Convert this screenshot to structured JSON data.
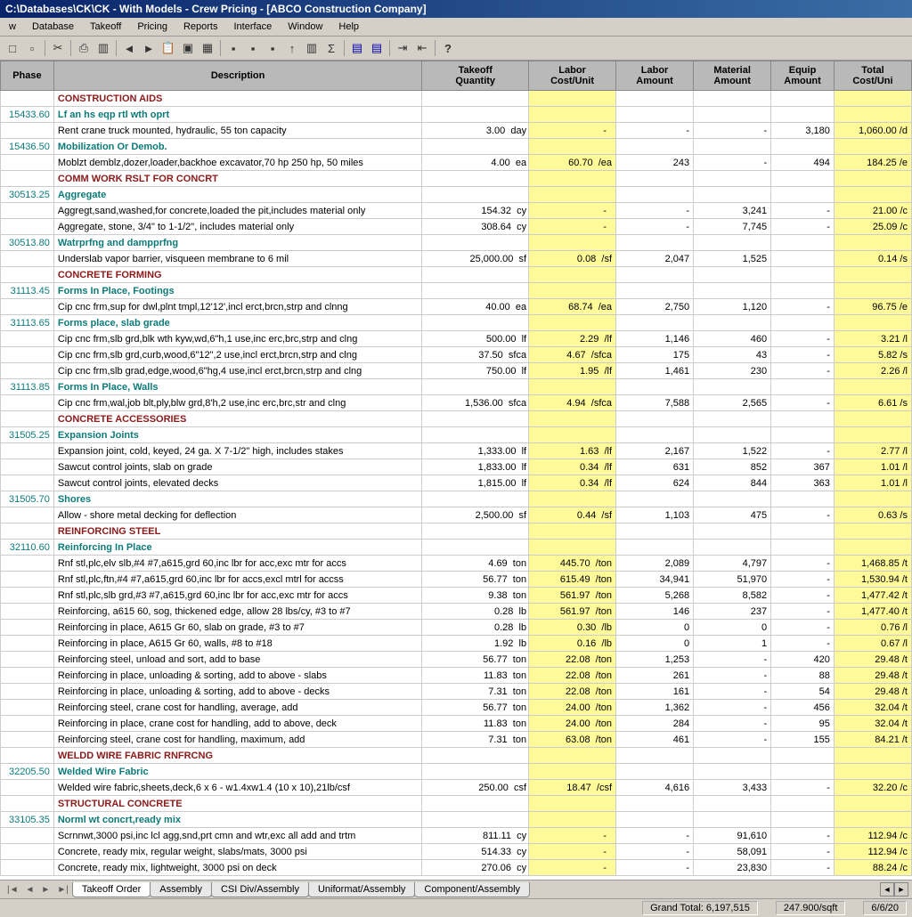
{
  "title": "C:\\Databases\\CK\\CK - With Models - Crew Pricing - [ABCO Construction Company]",
  "menu": [
    "w",
    "Database",
    "Takeoff",
    "Pricing",
    "Reports",
    "Interface",
    "Window",
    "Help"
  ],
  "cols": [
    "Phase",
    "Description",
    "Takeoff\nQuantity",
    "Labor\nCost/Unit",
    "Labor\nAmount",
    "Material\nAmount",
    "Equip\nAmount",
    "Total\nCost/Uni"
  ],
  "rows": [
    {
      "t": "sec",
      "d": "CONSTRUCTION AIDS"
    },
    {
      "t": "sub",
      "p": "15433.60",
      "d": "Lf an hs eqp rtl wth oprt"
    },
    {
      "t": "r",
      "d": "Rent crane truck mounted, hydraulic, 55 ton capacity",
      "q": "3.00",
      "u": "day",
      "c": "-",
      "la": "-",
      "ma": "-",
      "ea": "3,180",
      "tc": "1,060.00",
      "tu": "/d"
    },
    {
      "t": "sub",
      "p": "15436.50",
      "d": "Mobilization Or Demob."
    },
    {
      "t": "r",
      "d": "Moblzt demblz,dozer,loader,backhoe excavator,70 hp 250 hp, 50 miles",
      "q": "4.00",
      "u": "ea",
      "c": "60.70",
      "cu": "/ea",
      "la": "243",
      "ma": "-",
      "ea": "494",
      "tc": "184.25",
      "tu": "/e"
    },
    {
      "t": "sec",
      "d": "COMM WORK RSLT FOR CONCRT"
    },
    {
      "t": "sub",
      "p": "30513.25",
      "d": "Aggregate"
    },
    {
      "t": "r",
      "d": "Aggregt,sand,washed,for concrete,loaded the pit,includes material only",
      "q": "154.32",
      "u": "cy",
      "c": "-",
      "la": "-",
      "ma": "3,241",
      "ea": "-",
      "tc": "21.00",
      "tu": "/c"
    },
    {
      "t": "r",
      "d": "Aggregate, stone, 3/4\" to 1-1/2\", includes material only",
      "q": "308.64",
      "u": "cy",
      "c": "-",
      "la": "-",
      "ma": "7,745",
      "ea": "-",
      "tc": "25.09",
      "tu": "/c"
    },
    {
      "t": "sub",
      "p": "30513.80",
      "d": "Watrprfng and dampprfng"
    },
    {
      "t": "r",
      "d": "Underslab vapor barrier, visqueen membrane to 6 mil",
      "q": "25,000.00",
      "u": "sf",
      "c": "0.08",
      "cu": "/sf",
      "la": "2,047",
      "ma": "1,525",
      "ea": "",
      "tc": "0.14",
      "tu": "/s"
    },
    {
      "t": "sec",
      "d": "CONCRETE FORMING"
    },
    {
      "t": "sub",
      "p": "31113.45",
      "d": "Forms In Place, Footings"
    },
    {
      "t": "r",
      "d": "Cip cnc frm,sup for dwl,plnt tmpl,12'12',incl erct,brcn,strp and clnng",
      "q": "40.00",
      "u": "ea",
      "c": "68.74",
      "cu": "/ea",
      "la": "2,750",
      "ma": "1,120",
      "ea": "-",
      "tc": "96.75",
      "tu": "/e"
    },
    {
      "t": "sub",
      "p": "31113.65",
      "d": "Forms place, slab grade"
    },
    {
      "t": "r",
      "d": "Cip cnc frm,slb grd,blk wth kyw,wd,6\"h,1 use,inc erc,brc,strp and clng",
      "q": "500.00",
      "u": "lf",
      "c": "2.29",
      "cu": "/lf",
      "la": "1,146",
      "ma": "460",
      "ea": "-",
      "tc": "3.21",
      "tu": "/l"
    },
    {
      "t": "r",
      "d": "Cip cnc frm,slb grd,curb,wood,6\"12\",2 use,incl erct,brcn,strp and clng",
      "q": "37.50",
      "u": "sfca",
      "c": "4.67",
      "cu": "/sfca",
      "la": "175",
      "ma": "43",
      "ea": "-",
      "tc": "5.82",
      "tu": "/s"
    },
    {
      "t": "r",
      "d": "Cip cnc frm,slb grad,edge,wood,6\"hg,4 use,incl erct,brcn,strp and clng",
      "q": "750.00",
      "u": "lf",
      "c": "1.95",
      "cu": "/lf",
      "la": "1,461",
      "ma": "230",
      "ea": "-",
      "tc": "2.26",
      "tu": "/l"
    },
    {
      "t": "sub",
      "p": "31113.85",
      "d": "Forms In Place, Walls"
    },
    {
      "t": "r",
      "d": "Cip cnc frm,wal,job blt,ply,blw grd,8'h,2 use,inc erc,brc,str and clng",
      "q": "1,536.00",
      "u": "sfca",
      "c": "4.94",
      "cu": "/sfca",
      "la": "7,588",
      "ma": "2,565",
      "ea": "-",
      "tc": "6.61",
      "tu": "/s"
    },
    {
      "t": "sec",
      "d": "CONCRETE ACCESSORIES"
    },
    {
      "t": "sub",
      "p": "31505.25",
      "d": "Expansion Joints"
    },
    {
      "t": "r",
      "d": "Expansion joint, cold, keyed, 24 ga. X 7-1/2\" high, includes stakes",
      "q": "1,333.00",
      "u": "lf",
      "c": "1.63",
      "cu": "/lf",
      "la": "2,167",
      "ma": "1,522",
      "ea": "-",
      "tc": "2.77",
      "tu": "/l"
    },
    {
      "t": "r",
      "d": "Sawcut control joints, slab on grade",
      "q": "1,833.00",
      "u": "lf",
      "c": "0.34",
      "cu": "/lf",
      "la": "631",
      "ma": "852",
      "ea": "367",
      "tc": "1.01",
      "tu": "/l"
    },
    {
      "t": "r",
      "d": "Sawcut control joints, elevated decks",
      "q": "1,815.00",
      "u": "lf",
      "c": "0.34",
      "cu": "/lf",
      "la": "624",
      "ma": "844",
      "ea": "363",
      "tc": "1.01",
      "tu": "/l"
    },
    {
      "t": "sub",
      "p": "31505.70",
      "d": "Shores"
    },
    {
      "t": "r",
      "d": "Allow - shore metal decking for deflection",
      "q": "2,500.00",
      "u": "sf",
      "c": "0.44",
      "cu": "/sf",
      "la": "1,103",
      "ma": "475",
      "ea": "-",
      "tc": "0.63",
      "tu": "/s"
    },
    {
      "t": "sec",
      "d": "REINFORCING STEEL"
    },
    {
      "t": "sub",
      "p": "32110.60",
      "d": "Reinforcing In Place"
    },
    {
      "t": "r",
      "d": "Rnf stl,plc,elv slb,#4 #7,a615,grd 60,inc lbr for acc,exc mtr for accs",
      "q": "4.69",
      "u": "ton",
      "c": "445.70",
      "cu": "/ton",
      "la": "2,089",
      "ma": "4,797",
      "ea": "-",
      "tc": "1,468.85",
      "tu": "/t"
    },
    {
      "t": "r",
      "d": "Rnf stl,plc,ftn,#4 #7,a615,grd 60,inc lbr for accs,excl mtrl for accss",
      "q": "56.77",
      "u": "ton",
      "c": "615.49",
      "cu": "/ton",
      "la": "34,941",
      "ma": "51,970",
      "ea": "-",
      "tc": "1,530.94",
      "tu": "/t"
    },
    {
      "t": "r",
      "d": "Rnf stl,plc,slb grd,#3 #7,a615,grd 60,inc lbr for acc,exc mtr for accs",
      "q": "9.38",
      "u": "ton",
      "c": "561.97",
      "cu": "/ton",
      "la": "5,268",
      "ma": "8,582",
      "ea": "-",
      "tc": "1,477.42",
      "tu": "/t"
    },
    {
      "t": "r",
      "d": "Reinforcing, a615 60, sog, thickened edge, allow 28 lbs/cy, #3 to #7",
      "q": "0.28",
      "u": "lb",
      "c": "561.97",
      "cu": "/ton",
      "la": "146",
      "ma": "237",
      "ea": "-",
      "tc": "1,477.40",
      "tu": "/t"
    },
    {
      "t": "r",
      "d": "Reinforcing in place, A615 Gr 60, slab on grade, #3 to #7",
      "q": "0.28",
      "u": "lb",
      "c": "0.30",
      "cu": "/lb",
      "la": "0",
      "ma": "0",
      "ea": "-",
      "tc": "0.76",
      "tu": "/l"
    },
    {
      "t": "r",
      "d": "Reinforcing in place, A615 Gr 60, walls, #8 to #18",
      "q": "1.92",
      "u": "lb",
      "c": "0.16",
      "cu": "/lb",
      "la": "0",
      "ma": "1",
      "ea": "-",
      "tc": "0.67",
      "tu": "/l"
    },
    {
      "t": "r",
      "d": "Reinforcing steel, unload and sort, add to base",
      "q": "56.77",
      "u": "ton",
      "c": "22.08",
      "cu": "/ton",
      "la": "1,253",
      "ma": "-",
      "ea": "420",
      "tc": "29.48",
      "tu": "/t"
    },
    {
      "t": "r",
      "d": "Reinforcing in place, unloading & sorting, add to above - slabs",
      "q": "11.83",
      "u": "ton",
      "c": "22.08",
      "cu": "/ton",
      "la": "261",
      "ma": "-",
      "ea": "88",
      "tc": "29.48",
      "tu": "/t"
    },
    {
      "t": "r",
      "d": "Reinforcing in place, unloading & sorting, add to above - decks",
      "q": "7.31",
      "u": "ton",
      "c": "22.08",
      "cu": "/ton",
      "la": "161",
      "ma": "-",
      "ea": "54",
      "tc": "29.48",
      "tu": "/t"
    },
    {
      "t": "r",
      "d": "Reinforcing steel, crane cost for handling, average, add",
      "q": "56.77",
      "u": "ton",
      "c": "24.00",
      "cu": "/ton",
      "la": "1,362",
      "ma": "-",
      "ea": "456",
      "tc": "32.04",
      "tu": "/t"
    },
    {
      "t": "r",
      "d": "Reinforcing in place, crane cost for handling, add to above, deck",
      "q": "11.83",
      "u": "ton",
      "c": "24.00",
      "cu": "/ton",
      "la": "284",
      "ma": "-",
      "ea": "95",
      "tc": "32.04",
      "tu": "/t"
    },
    {
      "t": "r",
      "d": "Reinforcing steel, crane cost for handling, maximum, add",
      "q": "7.31",
      "u": "ton",
      "c": "63.08",
      "cu": "/ton",
      "la": "461",
      "ma": "-",
      "ea": "155",
      "tc": "84.21",
      "tu": "/t"
    },
    {
      "t": "sec",
      "d": "WELDD WIRE FABRIC RNFRCNG"
    },
    {
      "t": "sub",
      "p": "32205.50",
      "d": "Welded Wire Fabric"
    },
    {
      "t": "r",
      "d": "Welded wire fabric,sheets,deck,6 x 6 - w1.4xw1.4 (10 x 10),21lb/csf",
      "q": "250.00",
      "u": "csf",
      "c": "18.47",
      "cu": "/csf",
      "la": "4,616",
      "ma": "3,433",
      "ea": "-",
      "tc": "32.20",
      "tu": "/c"
    },
    {
      "t": "sec",
      "d": "STRUCTURAL CONCRETE"
    },
    {
      "t": "sub",
      "p": "33105.35",
      "d": "Norml wt concrt,ready mix"
    },
    {
      "t": "r",
      "d": "Scrnnwt,3000 psi,inc lcl agg,snd,prt cmn and wtr,exc all add and trtm",
      "q": "811.11",
      "u": "cy",
      "c": "-",
      "la": "-",
      "ma": "91,610",
      "ea": "-",
      "tc": "112.94",
      "tu": "/c"
    },
    {
      "t": "r",
      "d": "Concrete, ready mix, regular weight, slabs/mats, 3000 psi",
      "q": "514.33",
      "u": "cy",
      "c": "-",
      "la": "-",
      "ma": "58,091",
      "ea": "-",
      "tc": "112.94",
      "tu": "/c"
    },
    {
      "t": "r",
      "d": "Concrete, ready mix, lightweight, 3000 psi on deck",
      "q": "270.06",
      "u": "cy",
      "c": "-",
      "la": "-",
      "ma": "23,830",
      "ea": "-",
      "tc": "88.24",
      "tu": "/c"
    }
  ],
  "tabs": [
    "Takeoff Order",
    "Assembly",
    "CSI Div/Assembly",
    "Uniformat/Assembly",
    "Component/Assembly"
  ],
  "status": {
    "total": "Grand Total: 6,197,515",
    "sqft": "247.900/sqft",
    "date": "6/6/20"
  }
}
